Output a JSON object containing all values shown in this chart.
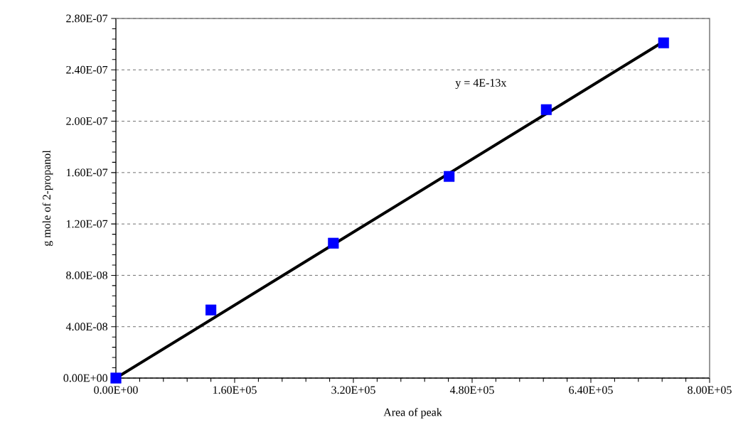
{
  "chart_data": {
    "type": "scatter",
    "xlabel": "Area of peak",
    "ylabel": "g mole of 2-propanol",
    "annotations": [
      "y = 4E-13x"
    ],
    "xlim": [
      0,
      800000
    ],
    "ylim": [
      0,
      2.8e-07
    ],
    "xticks": [
      {
        "value": 0,
        "label": "0.00E+00"
      },
      {
        "value": 160000,
        "label": "1.60E+05"
      },
      {
        "value": 320000,
        "label": "3.20E+05"
      },
      {
        "value": 480000,
        "label": "4.80E+05"
      },
      {
        "value": 640000,
        "label": "6.40E+05"
      },
      {
        "value": 800000,
        "label": "8.00E+05"
      }
    ],
    "yticks": [
      {
        "value": 0,
        "label": "0.00E+00"
      },
      {
        "value": 4e-08,
        "label": "4.00E-08"
      },
      {
        "value": 8e-08,
        "label": "8.00E-08"
      },
      {
        "value": 1.2e-07,
        "label": "1.20E-07"
      },
      {
        "value": 1.6e-07,
        "label": "1.60E-07"
      },
      {
        "value": 2e-07,
        "label": "2.00E-07"
      },
      {
        "value": 2.4e-07,
        "label": "2.40E-07"
      },
      {
        "value": 2.8e-07,
        "label": "2.80E-07"
      }
    ],
    "grid": "y",
    "marker": "square",
    "series": [
      {
        "color": "#0000ff",
        "x": [
          0,
          128000,
          293000,
          449000,
          580000,
          738000
        ],
        "values": [
          0,
          5.3e-08,
          1.05e-07,
          1.57e-07,
          2.09e-07,
          2.61e-07
        ]
      },
      {
        "type": "line",
        "color": "#000000",
        "marker": "none",
        "line_style": "solid",
        "x": [
          0,
          738000
        ],
        "values": [
          0,
          2.62e-07
        ]
      }
    ]
  }
}
